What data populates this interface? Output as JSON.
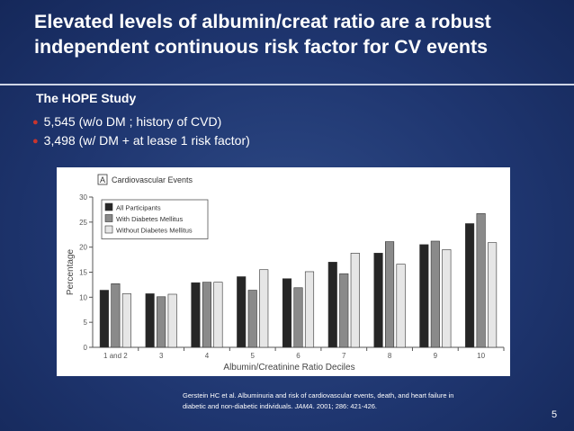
{
  "slide": {
    "title": "Elevated levels of albumin/creat ratio are a robust\nindependent continuous risk factor for CV events",
    "subtitle": "The HOPE Study",
    "bullets": [
      "5,545 (w/o DM ; history of CVD)",
      "3,498 (w/ DM + at lease 1 risk factor)"
    ],
    "citation_before": "Gerstein HC et al.  Albuminuria and risk of cardiovascular events, death, and heart failure in diabetic and non-diabetic individuals.  ",
    "citation_journal": "JAMA",
    "citation_after": ".  2001; 286: 421-426.",
    "page_number": "5"
  },
  "colors": {
    "background": "#1f3670",
    "series": [
      "#262626",
      "#8a8a8a",
      "#e6e6e6"
    ]
  },
  "chart_data": {
    "type": "bar",
    "panel_letter": "A",
    "title": "Cardiovascular Events",
    "xlabel": "Albumin/Creatinine Ratio Deciles",
    "ylabel": "Percentage",
    "ylim": [
      0,
      30
    ],
    "yticks": [
      0,
      5,
      10,
      15,
      20,
      25,
      30
    ],
    "categories": [
      "1 and 2",
      "3",
      "4",
      "5",
      "6",
      "7",
      "8",
      "9",
      "10"
    ],
    "series": [
      {
        "name": "All Participants",
        "values": [
          11.4,
          10.7,
          12.9,
          14.1,
          13.7,
          17.0,
          18.8,
          20.5,
          24.7
        ]
      },
      {
        "name": "With Diabetes Mellitus",
        "values": [
          12.7,
          10.1,
          13.0,
          11.4,
          11.9,
          14.7,
          21.1,
          21.2,
          26.7
        ]
      },
      {
        "name": "Without Diabetes Mellitus",
        "values": [
          10.7,
          10.6,
          13.0,
          15.5,
          15.1,
          18.8,
          16.6,
          19.5,
          20.9
        ]
      }
    ],
    "legend_position": "top-left",
    "grid": false
  }
}
